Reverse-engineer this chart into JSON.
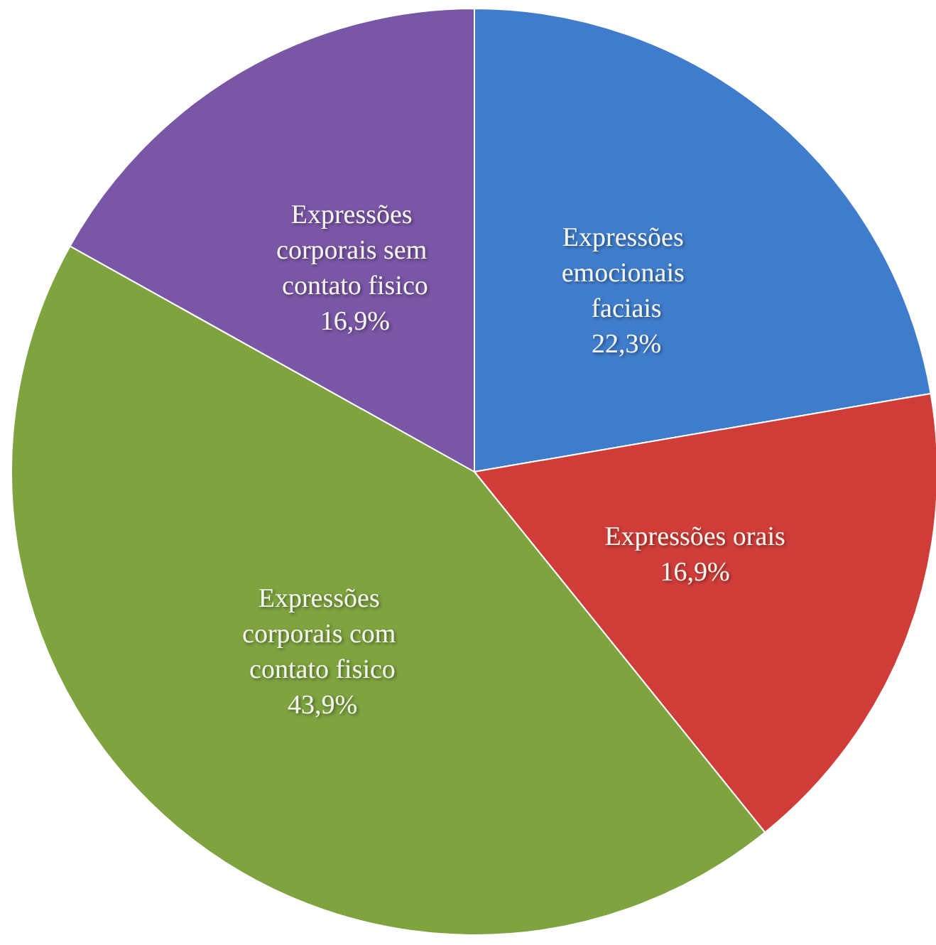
{
  "chart_data": {
    "type": "pie",
    "categories": [
      "Expressões emocionais faciais",
      "Expressões orais",
      "Expressões corporais com contato fisico",
      "Expressões corporais sem contato fisico"
    ],
    "values": [
      22.3,
      16.9,
      43.9,
      16.9
    ],
    "colors": [
      "#3f7dcc",
      "#d03d39",
      "#7ea33f",
      "#7a56a6"
    ],
    "value_labels": [
      "22,3%",
      "16,9%",
      "43,9%",
      "16,9%"
    ]
  }
}
